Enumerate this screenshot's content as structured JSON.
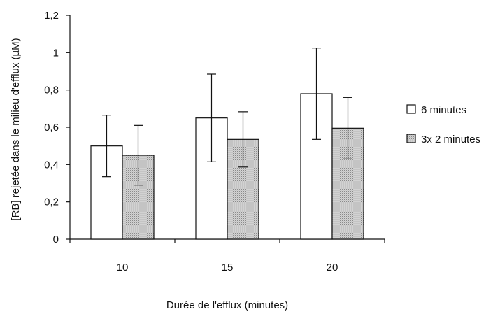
{
  "chart_data": {
    "type": "bar",
    "title": "",
    "xlabel": "Durée de l'efflux (minutes)",
    "ylabel": "[RB] rejetée dans le milieu d'efflux (µM)",
    "categories": [
      "10",
      "15",
      "20"
    ],
    "ylim": [
      0,
      1.2
    ],
    "yticks": [
      "0",
      "0,2",
      "0,4",
      "0,6",
      "0,8",
      "1",
      "1,2"
    ],
    "ytick_values": [
      0,
      0.2,
      0.4,
      0.6,
      0.8,
      1.0,
      1.2
    ],
    "series": [
      {
        "name": "6 minutes",
        "values": [
          0.5,
          0.65,
          0.78
        ],
        "error": [
          0.165,
          0.235,
          0.245
        ],
        "color": "#ffffff"
      },
      {
        "name": "3x 2 minutes",
        "values": [
          0.45,
          0.535,
          0.595
        ],
        "error": [
          0.16,
          0.148,
          0.165
        ],
        "color": "#c8c8c8"
      }
    ],
    "legend_position": "right",
    "grid": false
  }
}
